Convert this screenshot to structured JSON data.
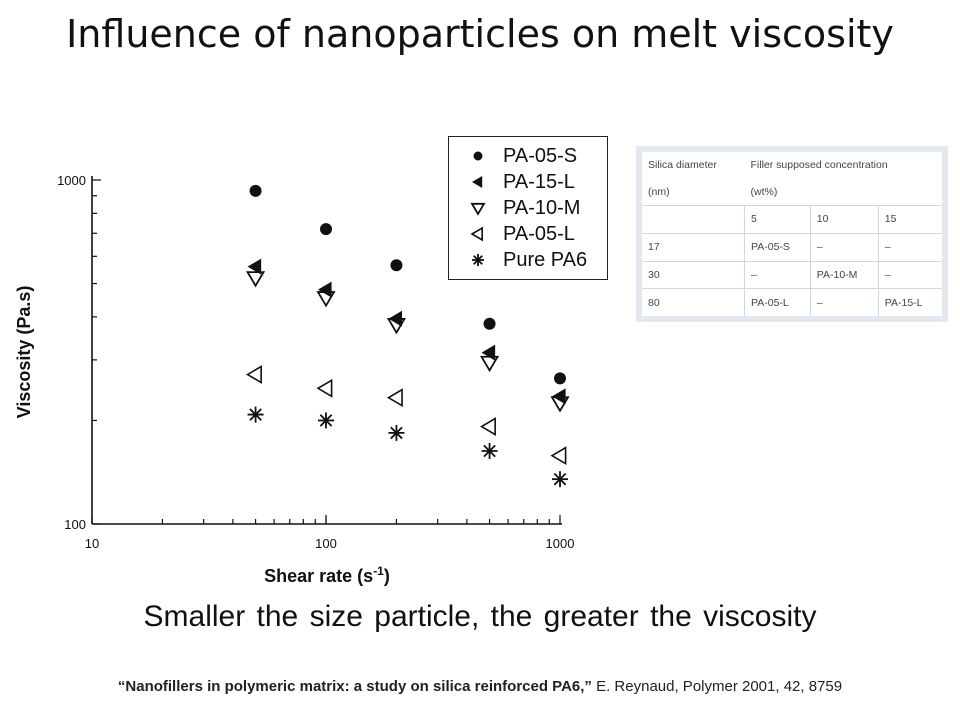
{
  "slide": {
    "title": "Influence of nanoparticles on melt viscosity",
    "caption": "Smaller the size particle, the greater the viscosity",
    "reference_title": "“Nanofillers in polymeric matrix: a study on silica reinforced PA6,”",
    "reference_rest": " E. Reynaud, Polymer 2001, 42, 8759"
  },
  "chart_data": {
    "type": "scatter",
    "xlabel": "Shear rate (s",
    "xlabel_sup": "-1",
    "xlabel_close": ")",
    "ylabel": "Viscosity (Pa.s)",
    "x_scale": "log",
    "y_scale": "log",
    "xlim": [
      10,
      1000
    ],
    "ylim": [
      100,
      1000
    ],
    "x_tick_labels": [
      "10",
      "100",
      "1000"
    ],
    "y_tick_labels": [
      "100",
      "1000"
    ],
    "legend_position": "top-right",
    "grid": false,
    "series": [
      {
        "name": "PA-05-S",
        "marker": "filled-circle",
        "x": [
          50,
          100,
          200,
          500,
          1000
        ],
        "y": [
          930,
          720,
          565,
          382,
          265
        ]
      },
      {
        "name": "PA-15-L",
        "marker": "filled-left-triangle",
        "x": [
          50,
          100,
          200,
          500,
          1000
        ],
        "y": [
          560,
          480,
          395,
          315,
          235
        ]
      },
      {
        "name": "PA-10-M",
        "marker": "open-down-triangle",
        "x": [
          50,
          100,
          200,
          500,
          1000
        ],
        "y": [
          520,
          455,
          380,
          295,
          225
        ]
      },
      {
        "name": "PA-05-L",
        "marker": "open-left-triangle",
        "x": [
          50,
          100,
          200,
          500,
          1000
        ],
        "y": [
          272,
          248,
          233,
          192,
          158
        ]
      },
      {
        "name": "Pure PA6",
        "marker": "asterisk",
        "x": [
          50,
          100,
          200,
          500,
          1000
        ],
        "y": [
          208,
          200,
          184,
          163,
          135
        ]
      }
    ]
  },
  "table": {
    "header1": [
      "Silica diameter",
      "Filler supposed concentration"
    ],
    "header2": [
      "(nm)",
      "(wt%)"
    ],
    "header3": [
      "",
      "5",
      "10",
      "15"
    ],
    "rows": [
      [
        "17",
        "PA-05-S",
        "–",
        "–"
      ],
      [
        "30",
        "–",
        "PA-10-M",
        "–"
      ],
      [
        "80",
        "PA-05-L",
        "–",
        "PA-15-L"
      ]
    ]
  }
}
